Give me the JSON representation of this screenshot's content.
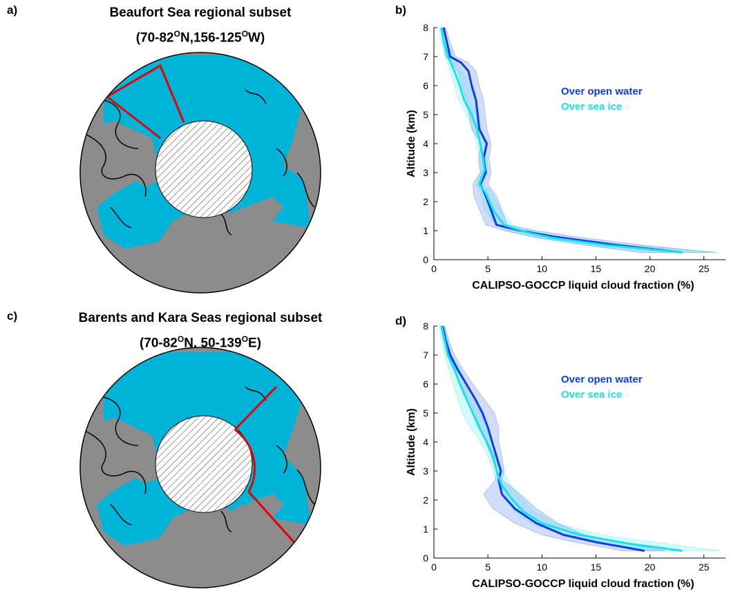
{
  "panels": {
    "a": {
      "letter": "a)",
      "title": "Beaufort Sea regional subset",
      "subtitle": {
        "lat_a": "70-82",
        "deg": "O",
        "lat_b": "N,156-125",
        "deg2": "O",
        "suffix": "W)",
        "prefix": "("
      }
    },
    "c": {
      "letter": "c)",
      "title": "Barents and Kara Seas regional subset",
      "subtitle": {
        "lat_a": "70-82",
        "deg": "O",
        "lat_b": "N, 50-139",
        "deg2": "O",
        "suffix": "E)",
        "prefix": "("
      }
    },
    "b": {
      "letter": "b)"
    },
    "d": {
      "letter": "d)"
    }
  },
  "map": {
    "colors": {
      "ocean": "#00B4D8",
      "land": "#8C8C8C",
      "coast": "#000000",
      "region": "#E60000",
      "hatch_bg": "#ffffff"
    }
  },
  "chart_data": [
    {
      "panel": "b",
      "type": "line",
      "xlabel": "CALIPSO-GOCCP liquid cloud fraction (%)",
      "ylabel": "Altitude (km)",
      "xlim": [
        0,
        27
      ],
      "ylim": [
        0,
        8
      ],
      "xticks": [
        "0",
        "5",
        "10",
        "15",
        "20",
        "25"
      ],
      "yticks": [
        "0",
        "1",
        "2",
        "3",
        "4",
        "5",
        "6",
        "7",
        "8"
      ],
      "series": [
        {
          "name": "Over open water",
          "color": "#0A3EE6",
          "points": [
            [
              23,
              0.25
            ],
            [
              17,
              0.5
            ],
            [
              11,
              0.8
            ],
            [
              8,
              1.0
            ],
            [
              5.8,
              1.2
            ],
            [
              4.8,
              2.2
            ],
            [
              4.3,
              2.6
            ],
            [
              4.8,
              3.0
            ],
            [
              4.6,
              3.5
            ],
            [
              4.9,
              4.0
            ],
            [
              4.2,
              4.5
            ],
            [
              3.9,
              5.5
            ],
            [
              3.5,
              6.0
            ],
            [
              3.2,
              6.5
            ],
            [
              2.5,
              6.8
            ],
            [
              1.5,
              7.0
            ],
            [
              1.2,
              7.5
            ],
            [
              0.9,
              8.0
            ]
          ],
          "band_low": [
            [
              19,
              0.25
            ],
            [
              14,
              0.5
            ],
            [
              9,
              0.8
            ],
            [
              6.5,
              1.0
            ],
            [
              4.8,
              1.2
            ],
            [
              3.7,
              2.2
            ],
            [
              3.6,
              2.6
            ],
            [
              4.3,
              3.0
            ],
            [
              4.1,
              3.5
            ],
            [
              4.4,
              4.0
            ],
            [
              3.5,
              4.5
            ],
            [
              3.0,
              5.5
            ],
            [
              2.6,
              6.0
            ],
            [
              2.2,
              6.5
            ],
            [
              1.6,
              6.8
            ],
            [
              1.1,
              7.0
            ],
            [
              0.9,
              7.5
            ],
            [
              0.7,
              8.0
            ]
          ],
          "band_high": [
            [
              26,
              0.25
            ],
            [
              19.5,
              0.5
            ],
            [
              13,
              0.8
            ],
            [
              9.5,
              1.0
            ],
            [
              6.8,
              1.2
            ],
            [
              5.8,
              2.2
            ],
            [
              5.0,
              2.6
            ],
            [
              5.3,
              3.0
            ],
            [
              5.1,
              3.5
            ],
            [
              5.3,
              4.0
            ],
            [
              4.9,
              4.5
            ],
            [
              4.6,
              5.5
            ],
            [
              4.2,
              6.0
            ],
            [
              3.9,
              6.5
            ],
            [
              3.2,
              6.8
            ],
            [
              2.0,
              7.0
            ],
            [
              1.5,
              7.5
            ],
            [
              1.1,
              8.0
            ]
          ]
        },
        {
          "name": "Over sea ice",
          "color": "#16E3E8",
          "points": [
            [
              23,
              0.25
            ],
            [
              16,
              0.5
            ],
            [
              11,
              0.75
            ],
            [
              8.5,
              0.95
            ],
            [
              6.5,
              1.2
            ],
            [
              5.5,
              1.7
            ],
            [
              4.8,
              2.3
            ],
            [
              4.2,
              2.6
            ],
            [
              4.7,
              3.1
            ],
            [
              4.5,
              3.6
            ],
            [
              4.0,
              4.5
            ],
            [
              3.5,
              5.0
            ],
            [
              2.8,
              5.5
            ],
            [
              2.4,
              6.0
            ],
            [
              1.9,
              6.5
            ],
            [
              1.3,
              7.0
            ],
            [
              0.9,
              7.5
            ],
            [
              0.7,
              8.0
            ]
          ],
          "band_low": [
            [
              20.5,
              0.25
            ],
            [
              14,
              0.5
            ],
            [
              9.5,
              0.75
            ],
            [
              7.2,
              0.95
            ],
            [
              5.7,
              1.2
            ],
            [
              4.7,
              1.7
            ],
            [
              4.3,
              2.3
            ],
            [
              3.9,
              2.6
            ],
            [
              4.4,
              3.1
            ],
            [
              4.2,
              3.6
            ],
            [
              3.6,
              4.5
            ],
            [
              3.0,
              5.0
            ],
            [
              2.3,
              5.5
            ],
            [
              1.9,
              6.0
            ],
            [
              1.5,
              6.5
            ],
            [
              1.0,
              7.0
            ],
            [
              0.7,
              7.5
            ],
            [
              0.5,
              8.0
            ]
          ],
          "band_high": [
            [
              26.3,
              0.25
            ],
            [
              18.5,
              0.5
            ],
            [
              12.5,
              0.75
            ],
            [
              9.6,
              0.95
            ],
            [
              7.3,
              1.2
            ],
            [
              6.2,
              1.7
            ],
            [
              5.4,
              2.3
            ],
            [
              4.6,
              2.6
            ],
            [
              5.0,
              3.1
            ],
            [
              4.9,
              3.6
            ],
            [
              4.4,
              4.5
            ],
            [
              4.2,
              5.0
            ],
            [
              3.8,
              5.5
            ],
            [
              3.3,
              6.0
            ],
            [
              2.6,
              6.5
            ],
            [
              1.8,
              7.0
            ],
            [
              1.2,
              7.5
            ],
            [
              0.9,
              8.0
            ]
          ]
        }
      ],
      "legend_placement": "right-middle"
    },
    {
      "panel": "d",
      "type": "line",
      "xlabel": "CALIPSO-GOCCP liquid cloud fraction (%)",
      "ylabel": "Altitude (km)",
      "xlim": [
        0,
        27
      ],
      "ylim": [
        0,
        8
      ],
      "xticks": [
        "0",
        "5",
        "10",
        "15",
        "20",
        "25"
      ],
      "yticks": [
        "0",
        "1",
        "2",
        "3",
        "4",
        "5",
        "6",
        "7",
        "8"
      ],
      "series": [
        {
          "name": "Over open water",
          "color": "#0A3EE6",
          "points": [
            [
              19.5,
              0.25
            ],
            [
              15,
              0.55
            ],
            [
              12,
              0.8
            ],
            [
              9.5,
              1.2
            ],
            [
              7.5,
              1.7
            ],
            [
              6.3,
              2.2
            ],
            [
              6.0,
              2.7
            ],
            [
              6.2,
              3.0
            ],
            [
              5.8,
              3.5
            ],
            [
              5.4,
              4.0
            ],
            [
              5.0,
              4.5
            ],
            [
              4.5,
              5.0
            ],
            [
              3.8,
              5.5
            ],
            [
              3.0,
              6.0
            ],
            [
              2.2,
              6.5
            ],
            [
              1.5,
              7.0
            ],
            [
              1.1,
              7.5
            ],
            [
              0.8,
              8.0
            ]
          ],
          "band_low": [
            [
              17.5,
              0.25
            ],
            [
              13,
              0.55
            ],
            [
              10,
              0.8
            ],
            [
              7.5,
              1.2
            ],
            [
              5.5,
              1.7
            ],
            [
              4.6,
              2.2
            ],
            [
              5.7,
              2.7
            ],
            [
              5.8,
              3.0
            ],
            [
              5.3,
              3.5
            ],
            [
              4.8,
              4.0
            ],
            [
              4.3,
              4.5
            ],
            [
              3.8,
              5.0
            ],
            [
              3.2,
              5.5
            ],
            [
              2.5,
              6.0
            ],
            [
              1.8,
              6.5
            ],
            [
              1.2,
              7.0
            ],
            [
              0.9,
              7.5
            ],
            [
              0.6,
              8.0
            ]
          ],
          "band_high": [
            [
              21.5,
              0.25
            ],
            [
              17,
              0.55
            ],
            [
              14,
              0.8
            ],
            [
              11.5,
              1.2
            ],
            [
              9.5,
              1.7
            ],
            [
              8.0,
              2.2
            ],
            [
              6.3,
              2.7
            ],
            [
              6.5,
              3.0
            ],
            [
              6.3,
              3.5
            ],
            [
              6.0,
              4.0
            ],
            [
              6.0,
              4.5
            ],
            [
              5.6,
              5.0
            ],
            [
              4.6,
              5.5
            ],
            [
              3.6,
              6.0
            ],
            [
              2.7,
              6.5
            ],
            [
              1.9,
              7.0
            ],
            [
              1.4,
              7.5
            ],
            [
              1.0,
              8.0
            ]
          ]
        },
        {
          "name": "Over sea ice",
          "color": "#16E3E8",
          "points": [
            [
              23,
              0.25
            ],
            [
              18,
              0.5
            ],
            [
              13.5,
              0.8
            ],
            [
              10,
              1.2
            ],
            [
              8.3,
              1.6
            ],
            [
              7.3,
              2.0
            ],
            [
              6.3,
              2.5
            ],
            [
              5.8,
              3.0
            ],
            [
              5.5,
              3.5
            ],
            [
              4.9,
              4.0
            ],
            [
              4.2,
              4.5
            ],
            [
              3.6,
              5.0
            ],
            [
              3.0,
              5.5
            ],
            [
              2.4,
              6.0
            ],
            [
              1.9,
              6.5
            ],
            [
              1.3,
              7.0
            ],
            [
              1.0,
              7.5
            ],
            [
              0.7,
              8.0
            ]
          ],
          "band_low": [
            [
              20,
              0.25
            ],
            [
              15.5,
              0.5
            ],
            [
              12,
              0.8
            ],
            [
              9.0,
              1.2
            ],
            [
              7.5,
              1.6
            ],
            [
              6.6,
              2.0
            ],
            [
              5.9,
              2.5
            ],
            [
              5.5,
              3.0
            ],
            [
              5.0,
              3.5
            ],
            [
              4.3,
              4.0
            ],
            [
              3.4,
              4.5
            ],
            [
              2.6,
              5.0
            ],
            [
              2.2,
              5.5
            ],
            [
              1.8,
              6.0
            ],
            [
              1.4,
              6.5
            ],
            [
              1.0,
              7.0
            ],
            [
              0.7,
              7.5
            ],
            [
              0.5,
              8.0
            ]
          ],
          "band_high": [
            [
              26.5,
              0.25
            ],
            [
              21.5,
              0.5
            ],
            [
              15.5,
              0.8
            ],
            [
              11.3,
              1.2
            ],
            [
              9.3,
              1.6
            ],
            [
              8.3,
              2.0
            ],
            [
              7.2,
              2.5
            ],
            [
              6.4,
              3.0
            ],
            [
              5.9,
              3.5
            ],
            [
              5.3,
              4.0
            ],
            [
              4.8,
              4.5
            ],
            [
              4.4,
              5.0
            ],
            [
              3.8,
              5.5
            ],
            [
              3.1,
              6.0
            ],
            [
              2.4,
              6.5
            ],
            [
              1.7,
              7.0
            ],
            [
              1.3,
              7.5
            ],
            [
              0.9,
              8.0
            ]
          ]
        }
      ],
      "legend_placement": "right-middle"
    }
  ]
}
